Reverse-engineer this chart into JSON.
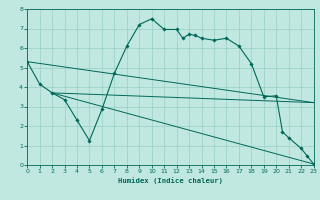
{
  "xlabel": "Humidex (Indice chaleur)",
  "xlim": [
    0,
    23
  ],
  "ylim": [
    0,
    8
  ],
  "xticks": [
    0,
    1,
    2,
    3,
    4,
    5,
    6,
    7,
    8,
    9,
    10,
    11,
    12,
    13,
    14,
    15,
    16,
    17,
    18,
    19,
    20,
    21,
    22,
    23
  ],
  "yticks": [
    0,
    1,
    2,
    3,
    4,
    5,
    6,
    7,
    8
  ],
  "bg_color": "#c0e8e0",
  "line_color": "#006858",
  "grid_color": "#98d0c4",
  "line1": [
    [
      0,
      5.3
    ],
    [
      1,
      4.15
    ],
    [
      2,
      3.7
    ],
    [
      3,
      3.35
    ],
    [
      4,
      2.3
    ],
    [
      5,
      1.25
    ],
    [
      6,
      2.85
    ],
    [
      7,
      4.7
    ],
    [
      8,
      6.1
    ],
    [
      9,
      7.2
    ],
    [
      10,
      7.5
    ],
    [
      11,
      6.95
    ],
    [
      12,
      6.95
    ],
    [
      12.5,
      6.5
    ],
    [
      13,
      6.7
    ],
    [
      13.5,
      6.65
    ],
    [
      14,
      6.5
    ],
    [
      15,
      6.4
    ],
    [
      16,
      6.5
    ],
    [
      17,
      6.1
    ],
    [
      18,
      5.2
    ],
    [
      19,
      3.5
    ],
    [
      20,
      3.55
    ],
    [
      20.5,
      1.7
    ],
    [
      21,
      1.4
    ],
    [
      22,
      0.85
    ],
    [
      22.5,
      0.45
    ],
    [
      23,
      0.05
    ]
  ],
  "line2": [
    [
      2,
      3.7
    ],
    [
      23,
      3.2
    ]
  ],
  "line3": [
    [
      2,
      3.7
    ],
    [
      23,
      0.05
    ]
  ],
  "line4": [
    [
      0,
      5.3
    ],
    [
      23,
      3.2
    ]
  ]
}
